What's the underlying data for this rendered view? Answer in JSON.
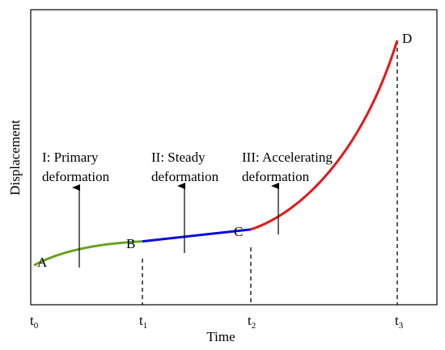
{
  "chart_data": {
    "type": "line",
    "xlabel": "Time",
    "ylabel": "Displacement",
    "grid": false,
    "ticks": [
      {
        "base": "t",
        "sub": "0"
      },
      {
        "base": "t",
        "sub": "1"
      },
      {
        "base": "t",
        "sub": "2"
      },
      {
        "base": "t",
        "sub": "3"
      }
    ],
    "points": [
      "A",
      "B",
      "C",
      "D"
    ],
    "stages": [
      {
        "line1": "I: Primary",
        "line2": "deformation",
        "color": "#6aa121"
      },
      {
        "line1": "II: Steady",
        "line2": "deformation",
        "color": "#0a0adf"
      },
      {
        "line1": "III: Accelerating",
        "line2": "deformation",
        "color": "#e11919"
      }
    ],
    "segments": [
      {
        "name": "primary",
        "x": [
          0,
          1
        ],
        "y": [
          0.06,
          0.16
        ]
      },
      {
        "name": "steady",
        "x": [
          1,
          2
        ],
        "y": [
          0.16,
          0.21
        ]
      },
      {
        "name": "accelerating",
        "x": [
          2,
          3
        ],
        "y": [
          0.21,
          1.0
        ]
      }
    ]
  }
}
